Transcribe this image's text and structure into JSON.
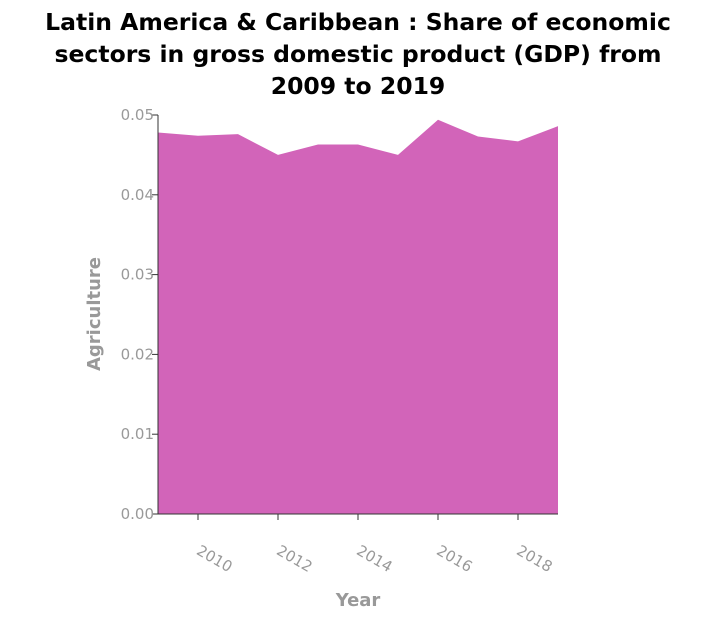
{
  "chart_data": {
    "type": "area",
    "title_lines": [
      "Latin America & Caribbean : Share of economic",
      "sectors in gross domestic product (GDP) from",
      "2009 to 2019"
    ],
    "xlabel": "Year",
    "ylabel": "Agriculture",
    "x": [
      2009,
      2010,
      2011,
      2012,
      2013,
      2014,
      2015,
      2016,
      2017,
      2018,
      2019
    ],
    "series": [
      {
        "values": [
          0.0478,
          0.0474,
          0.0476,
          0.045,
          0.0463,
          0.0463,
          0.045,
          0.0494,
          0.0473,
          0.0467,
          0.0486
        ]
      }
    ],
    "xlim": [
      2009,
      2019
    ],
    "ylim": [
      0,
      0.05
    ],
    "x_ticks": [
      "2010",
      "2012",
      "2014",
      "2016",
      "2018"
    ],
    "y_ticks": [
      "0.00",
      "0.01",
      "0.02",
      "0.03",
      "0.04",
      "0.05"
    ],
    "fill_color": "#d264b9",
    "grid": false
  }
}
